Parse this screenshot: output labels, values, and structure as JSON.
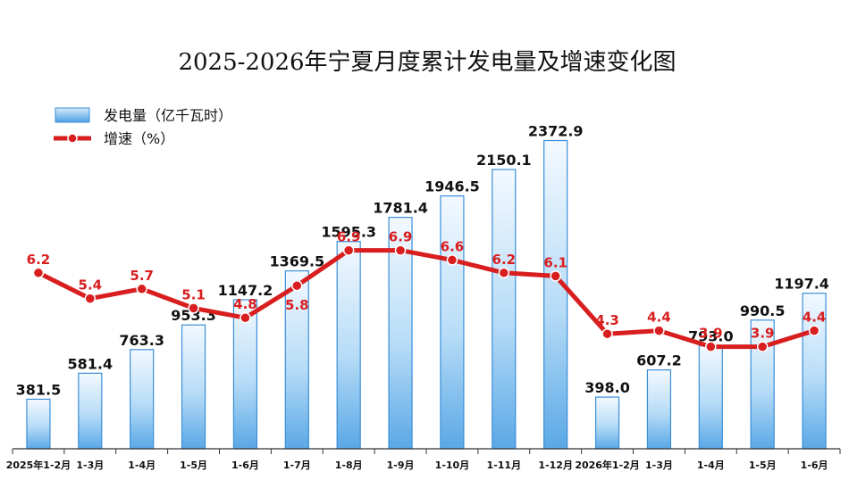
{
  "chart_data": {
    "type": "bar",
    "title": "2025-2026年宁夏月度累计发电量及增速变化图",
    "categories": [
      "2025年1-2月",
      "1-3月",
      "1-4月",
      "1-5月",
      "1-6月",
      "1-7月",
      "1-8月",
      "1-9月",
      "1-10月",
      "1-11月",
      "1-12月",
      "2026年1-2月",
      "1-3月",
      "1-4月",
      "1-5月",
      "1-6月"
    ],
    "series": [
      {
        "name": "发电量（亿千瓦时）",
        "type": "bar",
        "values": [
          381.5,
          581.4,
          763.3,
          953.3,
          1147.2,
          1369.5,
          1595.3,
          1781.4,
          1946.5,
          2150.1,
          2372.9,
          398.0,
          607.2,
          793.0,
          990.5,
          1197.4
        ]
      },
      {
        "name": "增速（%）",
        "type": "line",
        "values": [
          6.2,
          5.4,
          5.7,
          5.1,
          4.8,
          5.8,
          6.9,
          6.9,
          6.6,
          6.2,
          6.1,
          4.3,
          4.4,
          3.9,
          3.9,
          4.4
        ]
      }
    ],
    "bar_labels": [
      "381.5",
      "581.4",
      "763.3",
      "953.3",
      "1147.2",
      "1369.5",
      "1595.3",
      "1781.4",
      "1946.5",
      "2150.1",
      "2372.9",
      "398.0",
      "607.2",
      "793.0",
      "990.5",
      "1197.4"
    ],
    "rate_labels": [
      "6.2",
      "5.4",
      "5.7",
      "5.1",
      "4.8",
      "5.8",
      "6.9",
      "6.9",
      "6.6",
      "6.2",
      "6.1",
      "4.3",
      "4.4",
      "3.9",
      "3.9",
      "4.4"
    ],
    "legend_position": "top-left",
    "grid": false,
    "colors": {
      "bar_light": "#e3f1fc",
      "bar_dark": "#5aa8e6",
      "bar_stroke": "#3a8fd8",
      "line": "#d81e1e",
      "axis": "#333333"
    }
  }
}
